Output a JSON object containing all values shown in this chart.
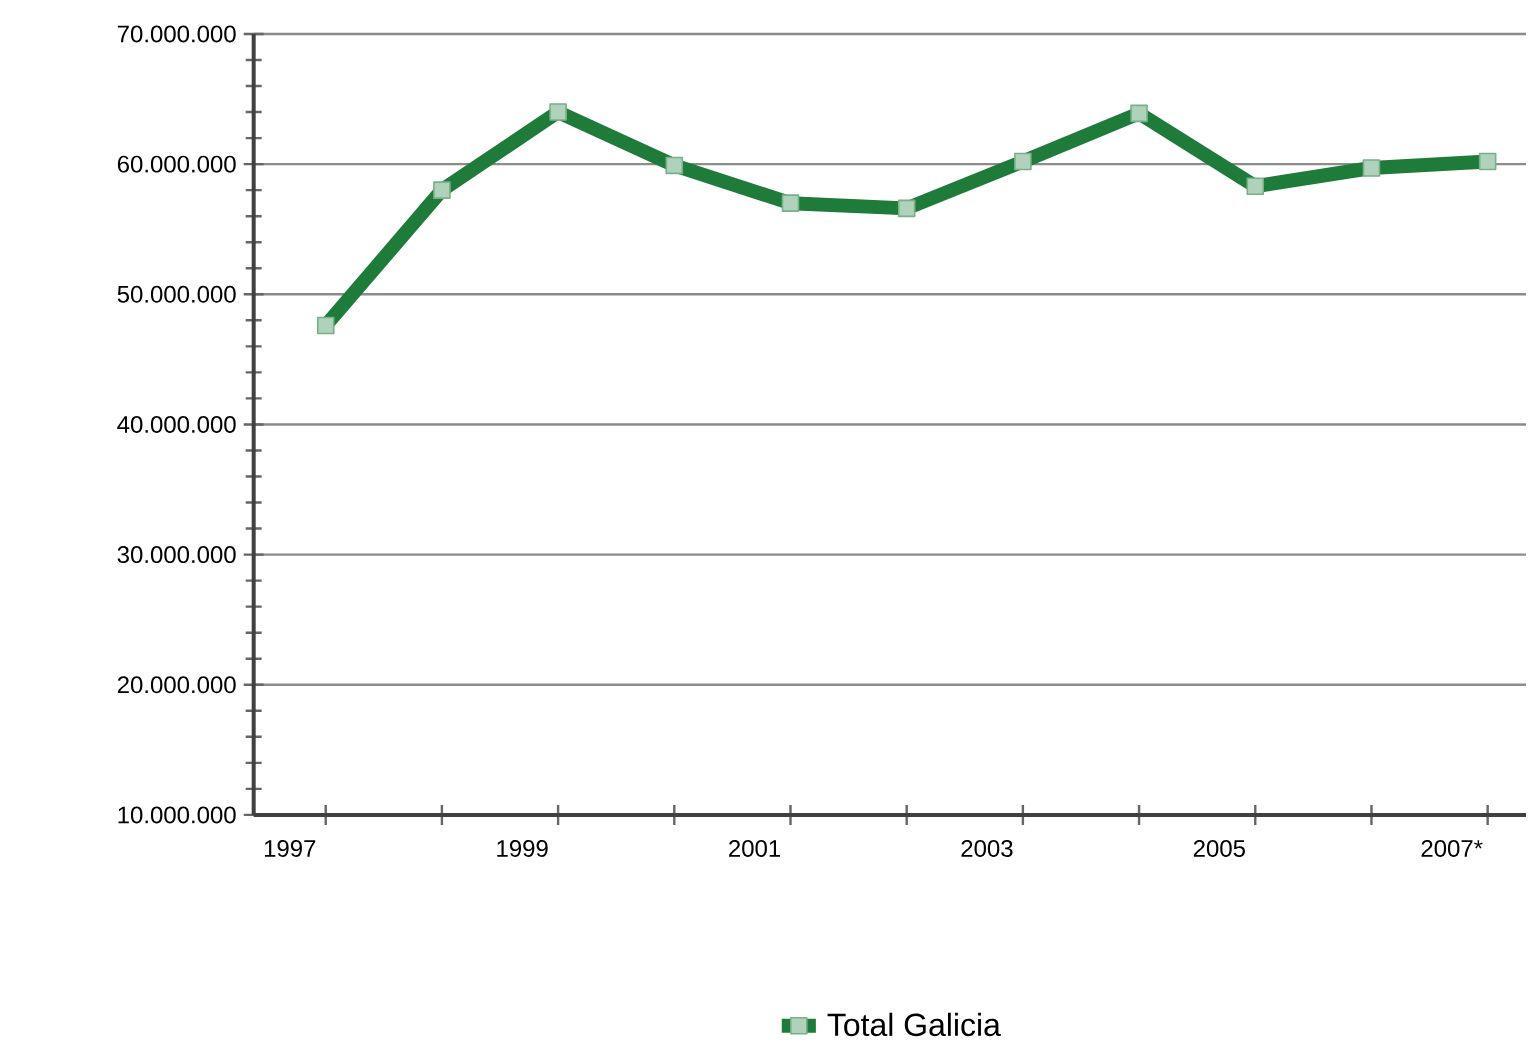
{
  "chart_data": {
    "type": "line",
    "categories": [
      "1997",
      null,
      "1999",
      null,
      "2001",
      null,
      "2003",
      null,
      "2005",
      null,
      "2007*"
    ],
    "series": [
      {
        "name": "Total Galicia",
        "color": "#1e7b3a",
        "values": [
          47600000,
          58000000,
          64000000,
          59900000,
          57000000,
          56600000,
          60200000,
          63900000,
          58300000,
          59700000,
          60200000
        ]
      }
    ],
    "ylim": [
      10000000,
      70000000
    ],
    "yticks": [
      {
        "value": 10000000,
        "label": "10.000.000"
      },
      {
        "value": 20000000,
        "label": "20.000.000"
      },
      {
        "value": 30000000,
        "label": "30.000.000"
      },
      {
        "value": 40000000,
        "label": "40.000.000"
      },
      {
        "value": 50000000,
        "label": "50.000.000"
      },
      {
        "value": 60000000,
        "label": "60.000.000"
      },
      {
        "value": 70000000,
        "label": "70.000.000"
      }
    ],
    "grid": "y",
    "legend": "bottom",
    "marker": "square",
    "line_style": "solid"
  }
}
